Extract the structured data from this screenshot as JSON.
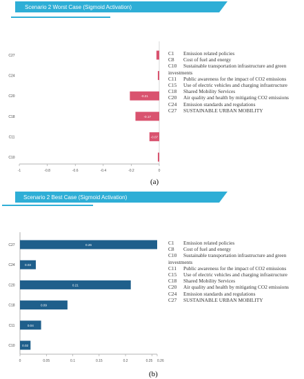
{
  "panels": [
    {
      "banner_title": "Scenario 2 Worst Case (Sigmoid Activation)",
      "panel_label": "(a)"
    },
    {
      "banner_title": "Scenario 2 Best Case (Sigmoid Activation)",
      "panel_label": "(b)"
    }
  ],
  "legend": [
    {
      "code": "C1",
      "desc": "Emission related policies"
    },
    {
      "code": "C8",
      "desc": "Cost of fuel and energy"
    },
    {
      "code": "C10",
      "desc": "Sustainable transportation infrastructure and green",
      "wrap": "investments"
    },
    {
      "code": "C11",
      "desc": "Public awareness for the impact of CO2 emissions"
    },
    {
      "code": "C15",
      "desc": "Use of electric vehicles and charging infrastructure"
    },
    {
      "code": "C18",
      "desc": "Shared Mobility Services"
    },
    {
      "code": "C20",
      "desc": "Air quality and health by mitigating CO2 emissions"
    },
    {
      "code": "C24",
      "desc": "Emission standards and regulations"
    },
    {
      "code": "C27",
      "desc": "SUSTAINABLE URBAN MOBILITY"
    }
  ],
  "colors": {
    "banner": "#2eaed6",
    "worst_bar": "#d9536f",
    "best_bar": "#1f5f8b"
  },
  "chart_data": [
    {
      "type": "bar",
      "orientation": "horizontal",
      "title": "Scenario 2 Worst Case (Sigmoid Activation)",
      "categories": [
        "C27",
        "C24",
        "C20",
        "C18",
        "C11",
        "C10"
      ],
      "values": [
        -0.02,
        -0.01,
        -0.21,
        -0.17,
        -0.07,
        -0.01
      ],
      "data_labels": [
        "",
        "",
        "-0.21",
        "-0.17",
        "-0.07",
        ""
      ],
      "xlim": [
        -1,
        0
      ],
      "xticks": [
        "-1",
        "-0.8",
        "-0.6",
        "-0.4",
        "-0.2",
        "0"
      ],
      "grid": false
    },
    {
      "type": "bar",
      "orientation": "horizontal",
      "title": "Scenario 2 Best Case (Sigmoid Activation)",
      "categories": [
        "C27",
        "C24",
        "C20",
        "C18",
        "C11",
        "C10"
      ],
      "values": [
        0.26,
        0.03,
        0.21,
        0.09,
        0.04,
        0.02
      ],
      "data_labels": [
        "0.26",
        "0.03",
        "0.21",
        "0.09",
        "0.04",
        "0.02"
      ],
      "xlim": [
        0,
        0.26
      ],
      "xticks": [
        "0",
        "0.05",
        "0.1",
        "0.15",
        "0.2",
        "0.25",
        "0.26"
      ],
      "grid": false
    }
  ]
}
